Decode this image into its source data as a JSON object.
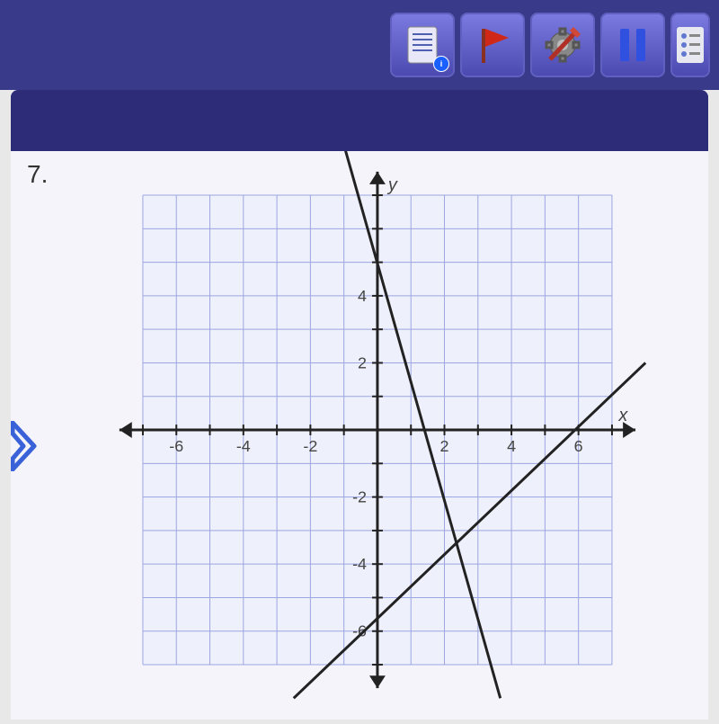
{
  "toolbar": {
    "buttons": [
      {
        "name": "notes-button",
        "icon": "notes",
        "info_badge": true
      },
      {
        "name": "flag-button",
        "icon": "flag",
        "info_badge": false
      },
      {
        "name": "tools-button",
        "icon": "tools",
        "info_badge": false
      },
      {
        "name": "pause-button",
        "icon": "pause",
        "info_badge": false
      },
      {
        "name": "options-button",
        "icon": "options",
        "info_badge": false
      }
    ]
  },
  "question": {
    "number": "7."
  },
  "chart": {
    "type": "line",
    "background_color": "#f4f4fa",
    "grid_region_color": "#eef0fb",
    "grid_color": "#9ca6e0",
    "axis_color": "#222222",
    "line_color": "#222222",
    "label_color": "#444444",
    "axis_label_fontsize": 20,
    "tick_fontsize": 18,
    "line_width": 3,
    "axis_width": 3,
    "grid_width": 1,
    "x_axis_label": "x",
    "y_axis_label": "y",
    "xlim": [
      -8,
      8
    ],
    "ylim": [
      -8,
      8
    ],
    "xtick_step": 2,
    "ytick_step": 2,
    "xtick_labels": [
      -6,
      -4,
      -2,
      2,
      4,
      6
    ],
    "ytick_labels": [
      -6,
      -4,
      -2,
      2,
      4
    ],
    "grid_x": [
      -7,
      -6,
      -5,
      -4,
      -3,
      -2,
      -1,
      1,
      2,
      3,
      4,
      5,
      6,
      7
    ],
    "grid_y": [
      -7,
      -6,
      -5,
      -4,
      -3,
      -2,
      -1,
      1,
      2,
      3,
      4,
      5,
      6,
      7
    ],
    "series": [
      {
        "name": "line-1-steep",
        "points": [
          [
            -1,
            8.5
          ],
          [
            3.667,
            -8
          ]
        ],
        "color": "#222222"
      },
      {
        "name": "line-2-shallow",
        "points": [
          [
            -2.5,
            -8
          ],
          [
            8,
            2
          ]
        ],
        "color": "#222222"
      }
    ]
  },
  "nav": {
    "arrow_color": "#3a62d8"
  }
}
